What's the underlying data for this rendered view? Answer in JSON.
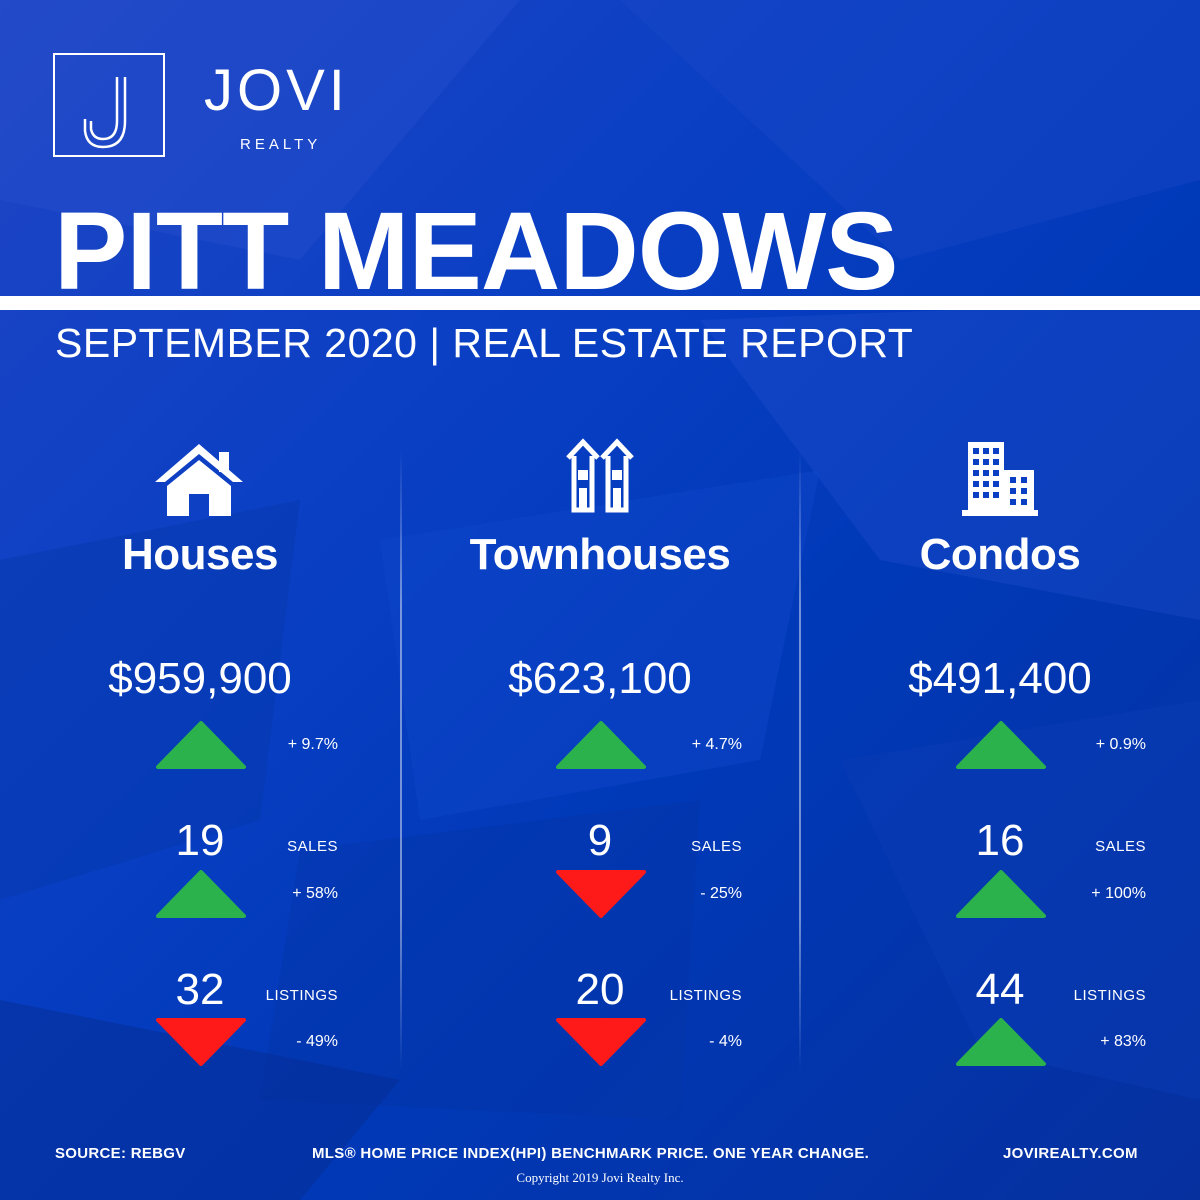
{
  "brand": {
    "logo_letter": "J",
    "name": "JOVI",
    "tagline": "REALTY"
  },
  "header": {
    "title": "PITT MEADOWS",
    "subtitle": "SEPTEMBER 2020 | REAL ESTATE REPORT"
  },
  "colors": {
    "background": "#0a3fc4",
    "up": "#2bb24c",
    "down": "#ff1a1a",
    "text": "#ffffff"
  },
  "labels": {
    "sales": "SALES",
    "listings": "LISTINGS"
  },
  "columns": [
    {
      "icon": "house-icon",
      "title": "Houses",
      "price": "$959,900",
      "price_change": "+ 9.7%",
      "price_dir": "up",
      "sales": "19",
      "sales_change": "+ 58%",
      "sales_dir": "up",
      "listings": "32",
      "listings_change": "- 49%",
      "listings_dir": "down"
    },
    {
      "icon": "townhouse-icon",
      "title": "Townhouses",
      "price": "$623,100",
      "price_change": "+ 4.7%",
      "price_dir": "up",
      "sales": "9",
      "sales_change": "- 25%",
      "sales_dir": "down",
      "listings": "20",
      "listings_change": "- 4%",
      "listings_dir": "down"
    },
    {
      "icon": "condo-building-icon",
      "title": "Condos",
      "price": "$491,400",
      "price_change": "+ 0.9%",
      "price_dir": "up",
      "sales": "16",
      "sales_change": "+ 100%",
      "sales_dir": "up",
      "listings": "44",
      "listings_change": "+ 83%",
      "listings_dir": "up"
    }
  ],
  "footer": {
    "source": "SOURCE:  REBGV",
    "note": "MLS® HOME PRICE INDEX(HPI) BENCHMARK PRICE. ONE YEAR CHANGE.",
    "website": "JOVIREALTY.COM",
    "copyright": "Copyright 2019 Jovi Realty Inc."
  }
}
